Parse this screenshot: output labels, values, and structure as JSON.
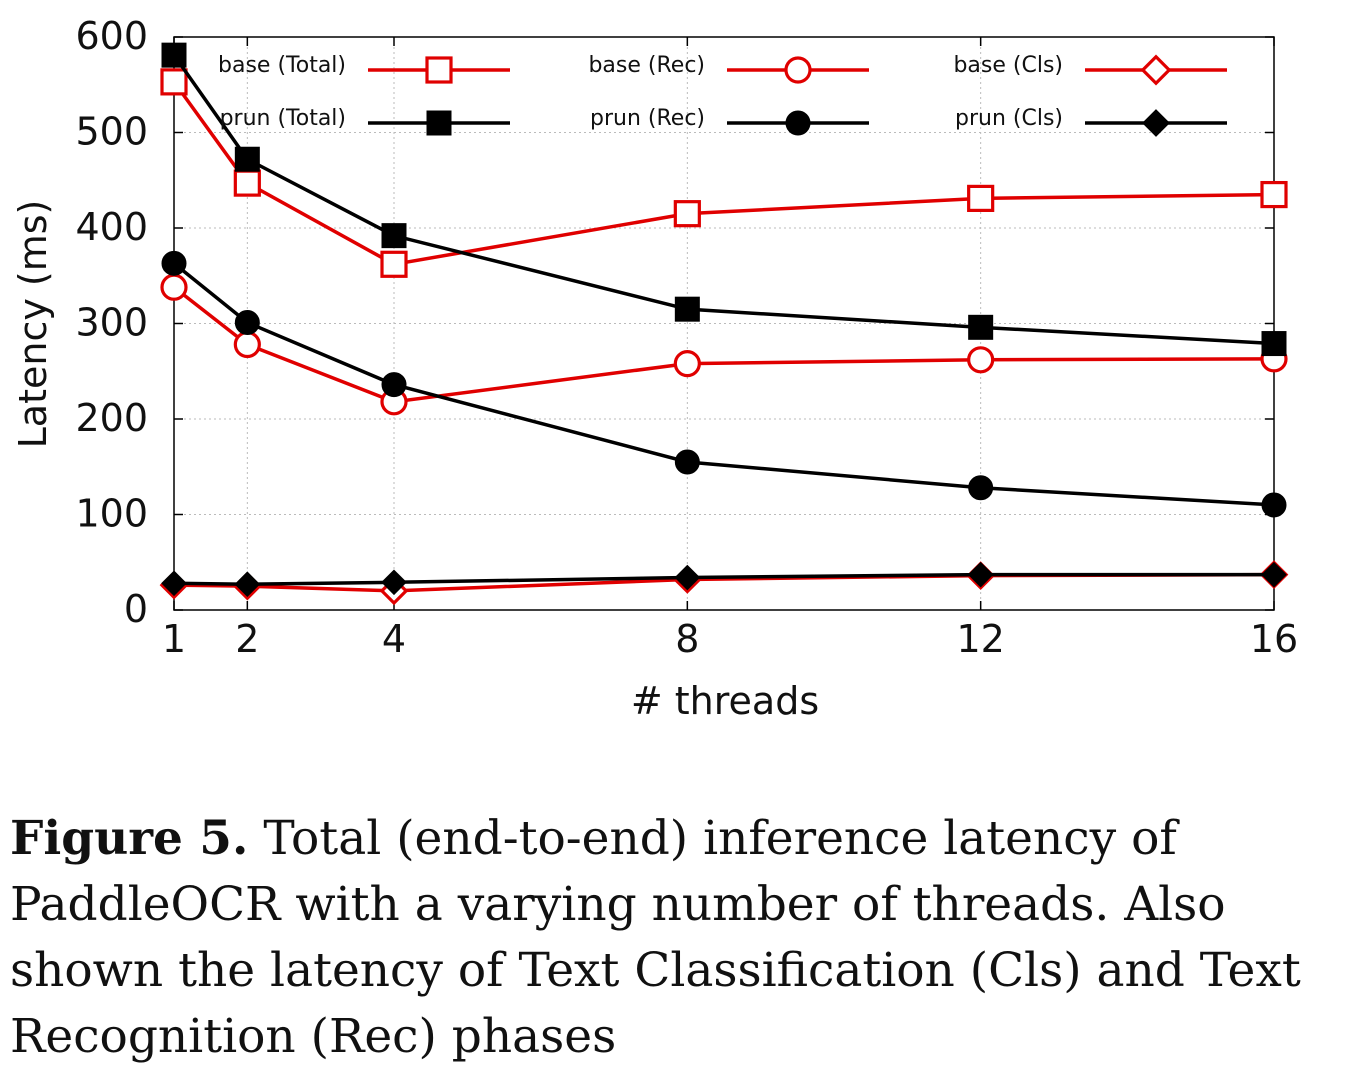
{
  "caption": {
    "label": "Figure 5.",
    "text": "Total (end-to-end) inference latency of PaddleOCR with a varying number of threads. Also shown the latency of Text Classification (Cls) and Text Recognition (Rec) phases"
  },
  "chart_data": {
    "type": "line",
    "xlabel": "# threads",
    "ylabel": "Latency (ms)",
    "x": [
      1,
      2,
      4,
      8,
      12,
      16
    ],
    "x_ticks": [
      "1",
      "2",
      "4",
      "8",
      "12",
      "16"
    ],
    "ylim": [
      0,
      600
    ],
    "y_ticks": [
      "0",
      "100",
      "200",
      "300",
      "400",
      "500",
      "600"
    ],
    "grid": true,
    "legend_position": "top",
    "series": [
      {
        "name": "base (Total)",
        "color": "#e00000",
        "marker": "square-open",
        "values": [
          553,
          447,
          362,
          415,
          431,
          435
        ]
      },
      {
        "name": "base (Rec)",
        "color": "#e00000",
        "marker": "circle-open",
        "values": [
          338,
          278,
          218,
          258,
          262,
          263
        ]
      },
      {
        "name": "base (Cls)",
        "color": "#e00000",
        "marker": "diamond-open",
        "values": [
          26,
          25,
          20,
          32,
          36,
          37
        ]
      },
      {
        "name": "prun (Total)",
        "color": "#000000",
        "marker": "square",
        "values": [
          581,
          472,
          392,
          315,
          296,
          279
        ]
      },
      {
        "name": "prun (Rec)",
        "color": "#000000",
        "marker": "circle",
        "values": [
          363,
          301,
          236,
          155,
          128,
          110
        ]
      },
      {
        "name": "prun (Cls)",
        "color": "#000000",
        "marker": "diamond",
        "values": [
          28,
          27,
          29,
          34,
          37,
          37
        ]
      }
    ]
  }
}
